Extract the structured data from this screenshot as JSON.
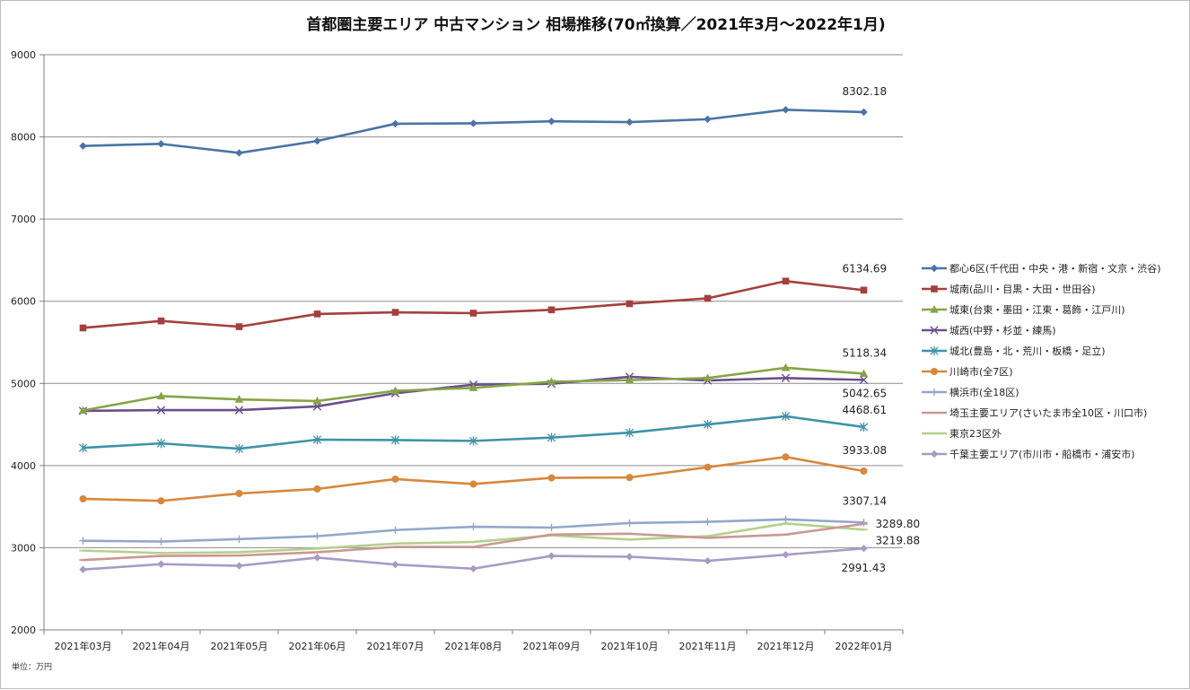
{
  "chart_data": {
    "type": "line",
    "title": "首都圏主要エリア 中古マンション 相場推移(70㎡換算／2021年3月～2022年1月)",
    "unit_note": "単位：万円",
    "ylim": [
      2000,
      9000
    ],
    "yticks": [
      "2000",
      "3000",
      "4000",
      "5000",
      "6000",
      "7000",
      "8000",
      "9000"
    ],
    "categories": [
      "2021年03月",
      "2021年04月",
      "2021年05月",
      "2021年06月",
      "2021年07月",
      "2021年08月",
      "2021年09月",
      "2021年10月",
      "2021年11月",
      "2021年12月",
      "2022年01月"
    ],
    "grid": "horizontal",
    "legend_position": "right",
    "series": [
      {
        "name": "都心6区(千代田・中央・港・新宿・文京・渋谷)",
        "color": "#4a74a5",
        "marker": "diamond",
        "values": [
          7890,
          7915,
          7805,
          7950,
          8160,
          8165,
          8190,
          8180,
          8215,
          8330,
          8302.18
        ],
        "end_label": "8302.18"
      },
      {
        "name": "城南(品川・目黒・大田・世田谷)",
        "color": "#a3403d",
        "marker": "square",
        "values": [
          5675,
          5760,
          5690,
          5845,
          5865,
          5855,
          5895,
          5970,
          6035,
          6245,
          6134.69
        ],
        "end_label": "6134.69"
      },
      {
        "name": "城東(台東・墨田・江東・葛飾・江戸川)",
        "color": "#86a447",
        "marker": "triangle",
        "values": [
          4670,
          4845,
          4805,
          4785,
          4910,
          4945,
          5020,
          5040,
          5065,
          5190,
          5118.34
        ],
        "end_label": "5118.34"
      },
      {
        "name": "城西(中野・杉並・練馬)",
        "color": "#6b4f8c",
        "marker": "x",
        "values": [
          4665,
          4675,
          4675,
          4720,
          4880,
          4985,
          4995,
          5080,
          5035,
          5065,
          5042.65
        ],
        "end_label": "5042.65"
      },
      {
        "name": "城北(豊島・北・荒川・板橋・足立)",
        "color": "#3f93a8",
        "marker": "star",
        "values": [
          4215,
          4270,
          4205,
          4315,
          4310,
          4300,
          4340,
          4400,
          4500,
          4600,
          4468.61
        ],
        "end_label": "4468.61"
      },
      {
        "name": "川崎市(全7区)",
        "color": "#d8873b",
        "marker": "circle",
        "values": [
          3595,
          3570,
          3660,
          3715,
          3835,
          3775,
          3850,
          3855,
          3980,
          4105,
          3933.08
        ],
        "end_label": "3933.08"
      },
      {
        "name": "横浜市(全18区)",
        "color": "#92a8c9",
        "marker": "plus",
        "values": [
          3085,
          3075,
          3105,
          3140,
          3215,
          3255,
          3245,
          3300,
          3315,
          3345,
          3307.14
        ],
        "end_label": "3307.14"
      },
      {
        "name": "埼玉主要エリア(さいたま市全10区・川口市)",
        "color": "#c99894",
        "marker": "dash",
        "values": [
          2850,
          2900,
          2905,
          2945,
          3010,
          3010,
          3160,
          3170,
          3120,
          3160,
          3289.8
        ],
        "end_label": "3289.80"
      },
      {
        "name": "東京23区外",
        "color": "#b4d08c",
        "marker": "dash",
        "values": [
          2965,
          2935,
          2945,
          2990,
          3050,
          3070,
          3150,
          3100,
          3140,
          3295,
          3219.88
        ],
        "end_label": "3219.88"
      },
      {
        "name": "千葉主要エリア(市川市・船橋市・浦安市)",
        "color": "#a99bc4",
        "marker": "diamond",
        "values": [
          2735,
          2800,
          2780,
          2880,
          2795,
          2745,
          2900,
          2890,
          2840,
          2915,
          2991.43
        ],
        "end_label": "2991.43"
      }
    ]
  }
}
